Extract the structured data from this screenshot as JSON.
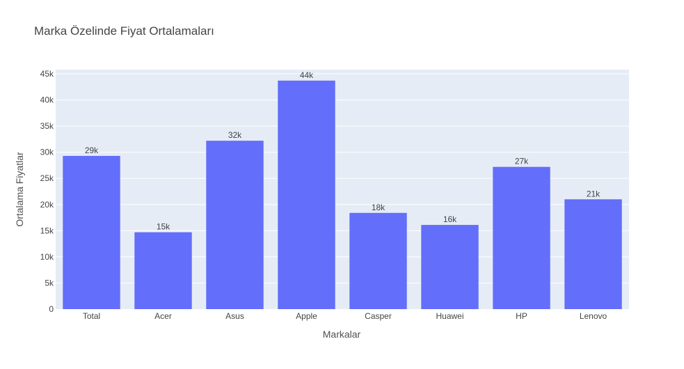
{
  "chart_data": {
    "type": "bar",
    "title": "Marka Özelinde Fiyat Ortalamaları",
    "xlabel": "Markalar",
    "ylabel": "Ortalama Fiyatlar",
    "categories": [
      "Total",
      "Acer",
      "Asus",
      "Apple",
      "Casper",
      "Huawei",
      "HP",
      "Lenovo"
    ],
    "values": [
      29300,
      14700,
      32200,
      43700,
      18400,
      16100,
      27200,
      21000
    ],
    "data_labels": [
      "29k",
      "15k",
      "32k",
      "44k",
      "18k",
      "16k",
      "27k",
      "21k"
    ],
    "ylim": [
      0,
      45800
    ],
    "yticks": [
      0,
      5000,
      10000,
      15000,
      20000,
      25000,
      30000,
      35000,
      40000,
      45000
    ],
    "ytick_labels": [
      "0",
      "5k",
      "10k",
      "15k",
      "20k",
      "25k",
      "30k",
      "35k",
      "40k",
      "45k"
    ],
    "grid": true,
    "colors": {
      "bar": "#636efa",
      "plot_bg": "#e5ecf6",
      "grid": "#ffffff"
    }
  }
}
